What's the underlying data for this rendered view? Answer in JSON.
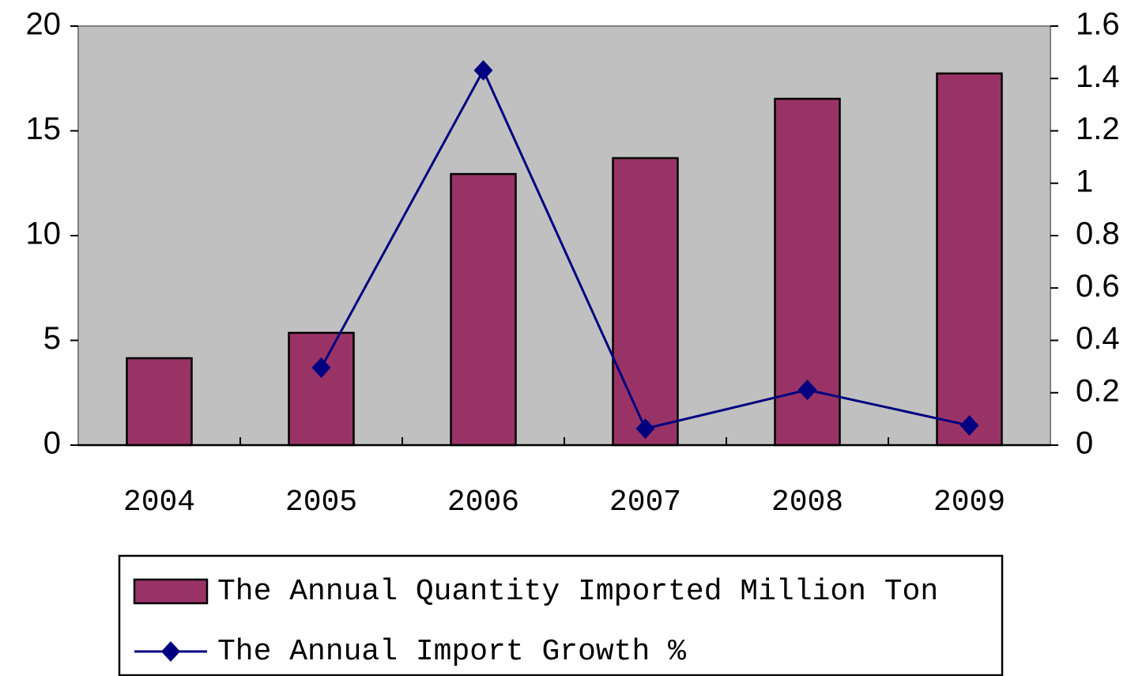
{
  "chart_data": {
    "type": "bar",
    "categories": [
      "2004",
      "2005",
      "2006",
      "2007",
      "2008",
      "2009"
    ],
    "series": [
      {
        "name": "The Annual Quantity Imported Million Ton",
        "type": "bar",
        "color": "#993366",
        "values": [
          4.15,
          5.36,
          12.94,
          13.7,
          16.53,
          17.74
        ]
      },
      {
        "name": "The Annual Import Growth %",
        "type": "line",
        "axis": "y2",
        "color": "#000080",
        "values": [
          null,
          0.296,
          1.431,
          0.063,
          0.211,
          0.075
        ]
      }
    ],
    "ylim": [
      0,
      20
    ],
    "yticks": [
      0,
      5,
      10,
      15,
      20
    ],
    "y2lim": [
      0,
      1.6
    ],
    "y2ticks": [
      0,
      0.2,
      0.4,
      0.6,
      0.8,
      1,
      1.2,
      1.4,
      1.6
    ],
    "plot_background": "#c0c0c0",
    "legend": "bottom"
  }
}
